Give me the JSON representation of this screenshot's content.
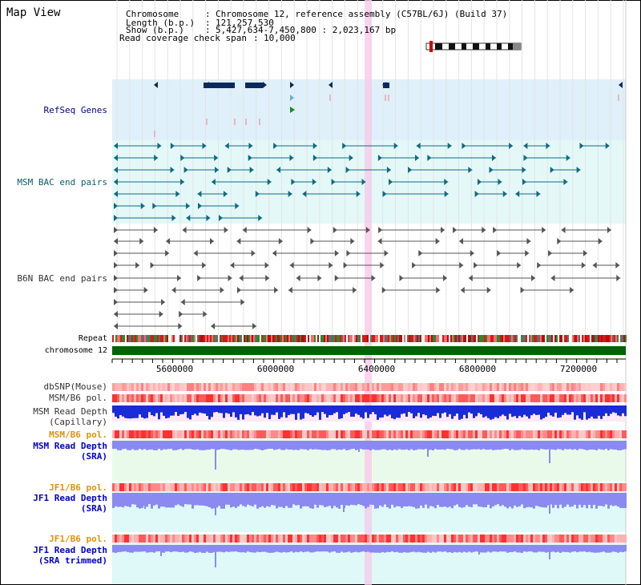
{
  "page": {
    "title": "Map View"
  },
  "header": {
    "chromosome_label": "Chromosome",
    "chromosome_value": "Chromosome 12, reference assembly (C57BL/6J) (Build 37)",
    "length_label": "Length (b.p.)",
    "length_value": "121,257,530",
    "show_label": "Show (b.p.)",
    "show_value": "5,427,634-7,450,800 : 2,023,167 bp",
    "coverage_label": "Read coverage check span",
    "coverage_value": "10,000"
  },
  "tracks": {
    "refseq": "RefSeq Genes",
    "msm_bac": "MSM BAC end pairs",
    "b6n_bac": "B6N BAC end pairs",
    "repeat": "Repeat",
    "chromosome": "chromosome 12",
    "dbsnp": "dbSNP(Mouse)",
    "msm_b6_pol": "MSM/B6 pol.",
    "msm_read_depth_cap_1": "MSM Read Depth",
    "msm_read_depth_cap_2": "(Capillary)",
    "msm_b6_pol_2": "MSM/B6 pol.",
    "msm_read_depth_sra_1": "MSM Read Depth",
    "msm_read_depth_sra_2": "(SRA)",
    "jf1_b6_pol": "JF1/B6 pol.",
    "jf1_read_depth_sra_1": "JF1 Read Depth",
    "jf1_read_depth_sra_2": "(SRA)",
    "jf1_b6_pol_2": "JF1/B6 pol.",
    "jf1_read_depth_trim_1": "JF1 Read Depth",
    "jf1_read_depth_trim_2": "(SRA trimmed)"
  },
  "axis": {
    "ticks": [
      "5600000",
      "6000000",
      "6400000",
      "6800000",
      "7200000"
    ]
  },
  "colors": {
    "refseq_bg": "#dff0fa",
    "msm_bg": "#e4f8f8",
    "b6n_bg": "#ffffff",
    "highlight": "#f7cbe8",
    "chrom_green": "#006400",
    "depth_blue": "#1a2bd8",
    "depth_lavender": "#8a8af0",
    "sra_bg": "#eafaea",
    "jf1_bg": "#dff8f8",
    "teal_feature": "#0e6c80",
    "navy_feature": "#0b2a5c"
  }
}
